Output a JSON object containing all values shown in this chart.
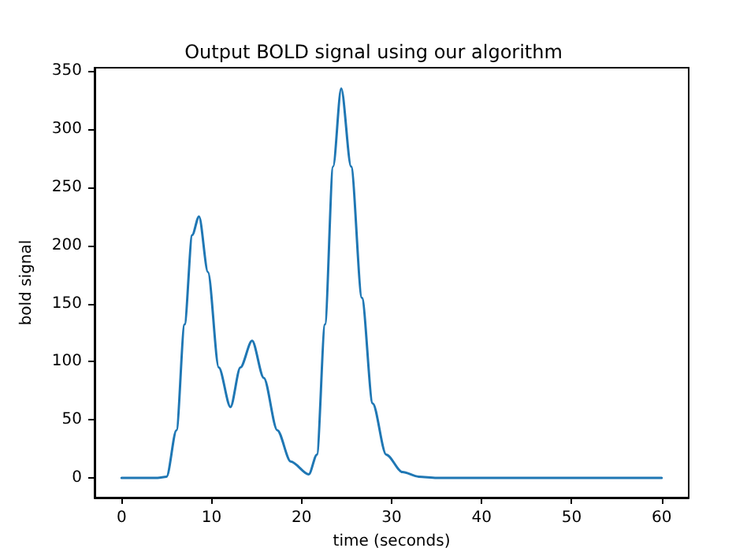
{
  "chart_data": {
    "type": "line",
    "title": "Output BOLD signal using our algorithm",
    "xlabel": "time (seconds)",
    "ylabel": "bold signal",
    "x": [
      0,
      2,
      4,
      5,
      6.1,
      7,
      7.85,
      8.6,
      9.6,
      10.8,
      12.1,
      13.2,
      14.5,
      15.8,
      17.3,
      18.8,
      20.8,
      21.7,
      22.6,
      23.5,
      24.4,
      25.5,
      26.7,
      27.9,
      29.4,
      31.2,
      33,
      35,
      40,
      50,
      60
    ],
    "series": [
      {
        "color": "#1f77b4",
        "values": [
          0,
          0,
          0,
          1,
          41,
          132,
          209,
          225,
          177,
          95,
          61,
          95,
          118,
          86,
          41,
          14,
          3,
          20,
          132,
          268,
          335,
          268,
          155,
          64,
          20,
          5,
          1,
          0,
          0,
          0,
          0
        ]
      }
    ],
    "xlim": [
      -3,
      63
    ],
    "xticks": [
      0,
      10,
      20,
      30,
      40,
      50,
      60
    ],
    "ylim": [
      -17,
      353
    ],
    "yticks": [
      0,
      50,
      100,
      150,
      200,
      250,
      300,
      350
    ],
    "grid": false,
    "marker": "none",
    "line_style": "solid"
  }
}
